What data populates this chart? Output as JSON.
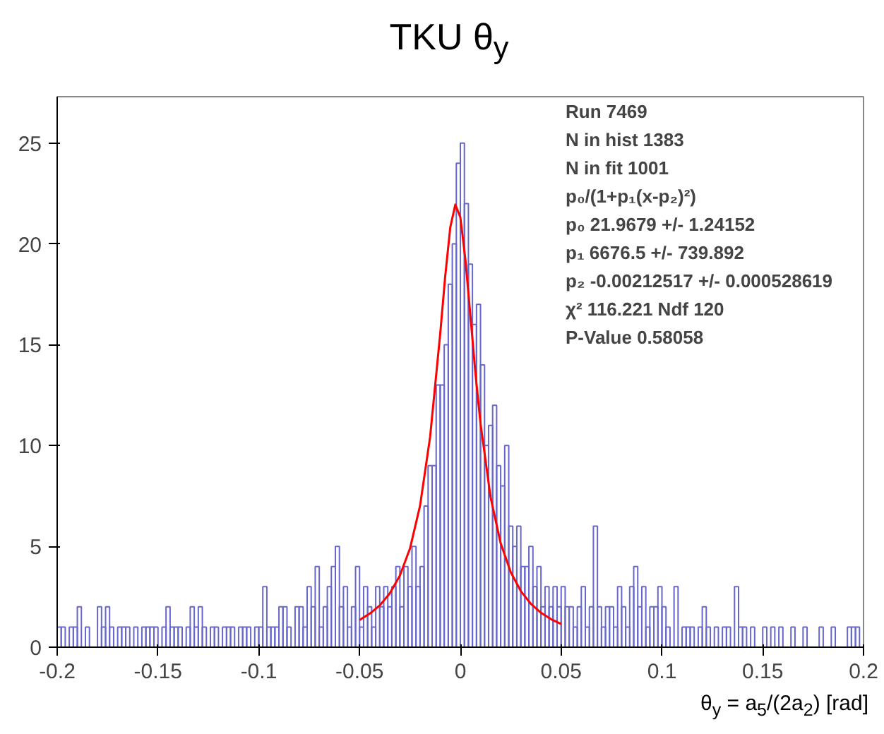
{
  "chart_data": {
    "type": "histogram",
    "title": "TKU θ$_{y}$",
    "xlabel": "θ$_{y}$ = a$_{5}$/(2a$_{2}$) [rad]",
    "bins": [
      -0.2,
      -0.198,
      -0.196,
      -0.194,
      -0.192,
      -0.19,
      -0.188,
      -0.186,
      -0.184,
      -0.182,
      -0.18,
      -0.178,
      -0.176,
      -0.174,
      -0.172,
      -0.17,
      -0.168,
      -0.166,
      -0.164,
      -0.162,
      -0.16,
      -0.158,
      -0.156,
      -0.154,
      -0.152,
      -0.15,
      -0.148,
      -0.146,
      -0.144,
      -0.142,
      -0.14,
      -0.138,
      -0.136,
      -0.134,
      -0.132,
      -0.13,
      -0.128,
      -0.126,
      -0.124,
      -0.122,
      -0.12,
      -0.118,
      -0.116,
      -0.114,
      -0.112,
      -0.11,
      -0.108,
      -0.106,
      -0.104,
      -0.102,
      -0.1,
      -0.098,
      -0.096,
      -0.094,
      -0.092,
      -0.09,
      -0.088,
      -0.086,
      -0.084,
      -0.082,
      -0.08,
      -0.078,
      -0.076,
      -0.074,
      -0.072,
      -0.07,
      -0.068,
      -0.066,
      -0.064,
      -0.062,
      -0.06,
      -0.058,
      -0.056,
      -0.054,
      -0.052,
      -0.05,
      -0.048,
      -0.046,
      -0.044,
      -0.042,
      -0.04,
      -0.038,
      -0.036,
      -0.034,
      -0.032,
      -0.03,
      -0.028,
      -0.026,
      -0.024,
      -0.022,
      -0.02,
      -0.018,
      -0.016,
      -0.014,
      -0.012,
      -0.01,
      -0.008,
      -0.006,
      -0.004,
      -0.002,
      0,
      0.002,
      0.004,
      0.006,
      0.008,
      0.01,
      0.012,
      0.014,
      0.016,
      0.018,
      0.02,
      0.022,
      0.024,
      0.026,
      0.028,
      0.03,
      0.032,
      0.034,
      0.036,
      0.038,
      0.04,
      0.042,
      0.044,
      0.046,
      0.048,
      0.05,
      0.052,
      0.054,
      0.056,
      0.058,
      0.06,
      0.062,
      0.064,
      0.066,
      0.068,
      0.07,
      0.072,
      0.074,
      0.076,
      0.078,
      0.08,
      0.082,
      0.084,
      0.086,
      0.088,
      0.09,
      0.092,
      0.094,
      0.096,
      0.098,
      0.1,
      0.102,
      0.104,
      0.106,
      0.108,
      0.11,
      0.112,
      0.114,
      0.116,
      0.118,
      0.12,
      0.122,
      0.124,
      0.126,
      0.128,
      0.13,
      0.132,
      0.134,
      0.136,
      0.138,
      0.14,
      0.142,
      0.144,
      0.146,
      0.148,
      0.15,
      0.152,
      0.154,
      0.156,
      0.158,
      0.16,
      0.162,
      0.164,
      0.166,
      0.168,
      0.17,
      0.172,
      0.174,
      0.176,
      0.178,
      0.18,
      0.182,
      0.184,
      0.186,
      0.188,
      0.19,
      0.192,
      0.194,
      0.196,
      0.198,
      0.2
    ],
    "values": [
      1,
      1,
      0,
      1,
      1,
      2,
      0,
      1,
      0,
      0,
      2,
      1,
      2,
      1,
      0,
      1,
      1,
      1,
      0,
      1,
      0,
      1,
      1,
      1,
      1,
      0,
      1,
      2,
      1,
      1,
      1,
      0,
      1,
      2,
      1,
      2,
      1,
      0,
      1,
      1,
      0,
      1,
      1,
      1,
      0,
      1,
      1,
      1,
      0,
      1,
      1,
      3,
      1,
      1,
      1,
      2,
      2,
      1,
      0,
      2,
      2,
      1,
      3,
      2,
      4,
      1,
      2,
      3,
      4,
      5,
      2,
      3,
      1,
      2,
      4,
      1,
      3,
      2,
      1,
      3,
      2,
      3,
      2,
      3,
      4,
      2,
      4,
      3,
      5,
      3,
      4,
      7,
      9,
      9,
      13,
      13,
      15,
      18,
      20,
      24,
      25,
      22,
      19,
      16,
      17,
      14,
      10,
      11,
      12,
      9,
      8,
      10,
      6,
      5,
      6,
      4,
      4,
      5,
      3,
      4,
      2,
      3,
      2,
      3,
      2,
      3,
      2,
      2,
      1,
      2,
      3,
      1,
      2,
      6,
      2,
      1,
      2,
      2,
      1,
      3,
      2,
      1,
      3,
      4,
      2,
      3,
      1,
      2,
      2,
      3,
      2,
      1,
      0,
      3,
      0,
      1,
      1,
      1,
      0,
      1,
      2,
      1,
      0,
      1,
      0,
      1,
      1,
      0,
      3,
      1,
      1,
      0,
      1,
      0,
      0,
      1,
      0,
      1,
      0,
      1,
      0,
      0,
      1,
      0,
      0,
      1,
      0,
      0,
      0,
      1,
      0,
      0,
      1,
      0,
      0,
      0,
      1,
      1,
      1,
      0
    ],
    "color": "#6666cc",
    "series": [
      {
        "type": "line",
        "color": "#ff0000",
        "x": [
          -0.05,
          -0.045,
          -0.04,
          -0.035,
          -0.03,
          -0.025,
          -0.02,
          -0.015,
          -0.01,
          -0.0075,
          -0.005,
          -0.0025,
          0,
          0.0025,
          0.005,
          0.0075,
          0.01,
          0.015,
          0.02,
          0.025,
          0.03,
          0.035,
          0.04,
          0.045,
          0.05
        ],
        "values": [
          1.35,
          1.66,
          2.07,
          2.67,
          3.55,
          4.89,
          7.01,
          10.43,
          15.54,
          18.41,
          20.82,
          21.95,
          21.32,
          19.22,
          16.41,
          13.57,
          11.09,
          7.43,
          5.15,
          3.72,
          2.78,
          2.15,
          1.71,
          1.39,
          1.15
        ]
      }
    ],
    "xlim": [
      -0.2,
      0.2
    ],
    "ylim": [
      0,
      27.3
    ],
    "xticks": [
      -0.2,
      -0.15,
      -0.1,
      -0.05,
      0,
      0.05,
      0.1,
      0.15,
      0.2
    ],
    "yticks": [
      0,
      5,
      10,
      15,
      20,
      25
    ],
    "grid": false,
    "annotations": [
      "Run 7469",
      "N in hist 1383",
      "N in fit 1001",
      "p₀/(1+p₁(x-p₂)²)",
      "p₀ 21.9679 +/- 1.24152",
      "p₁ 6676.5 +/- 739.892",
      "p₂ -0.00212517 +/- 0.000528619",
      "χ² 116.221 Ndf 120",
      " P-Value 0.58058"
    ]
  }
}
